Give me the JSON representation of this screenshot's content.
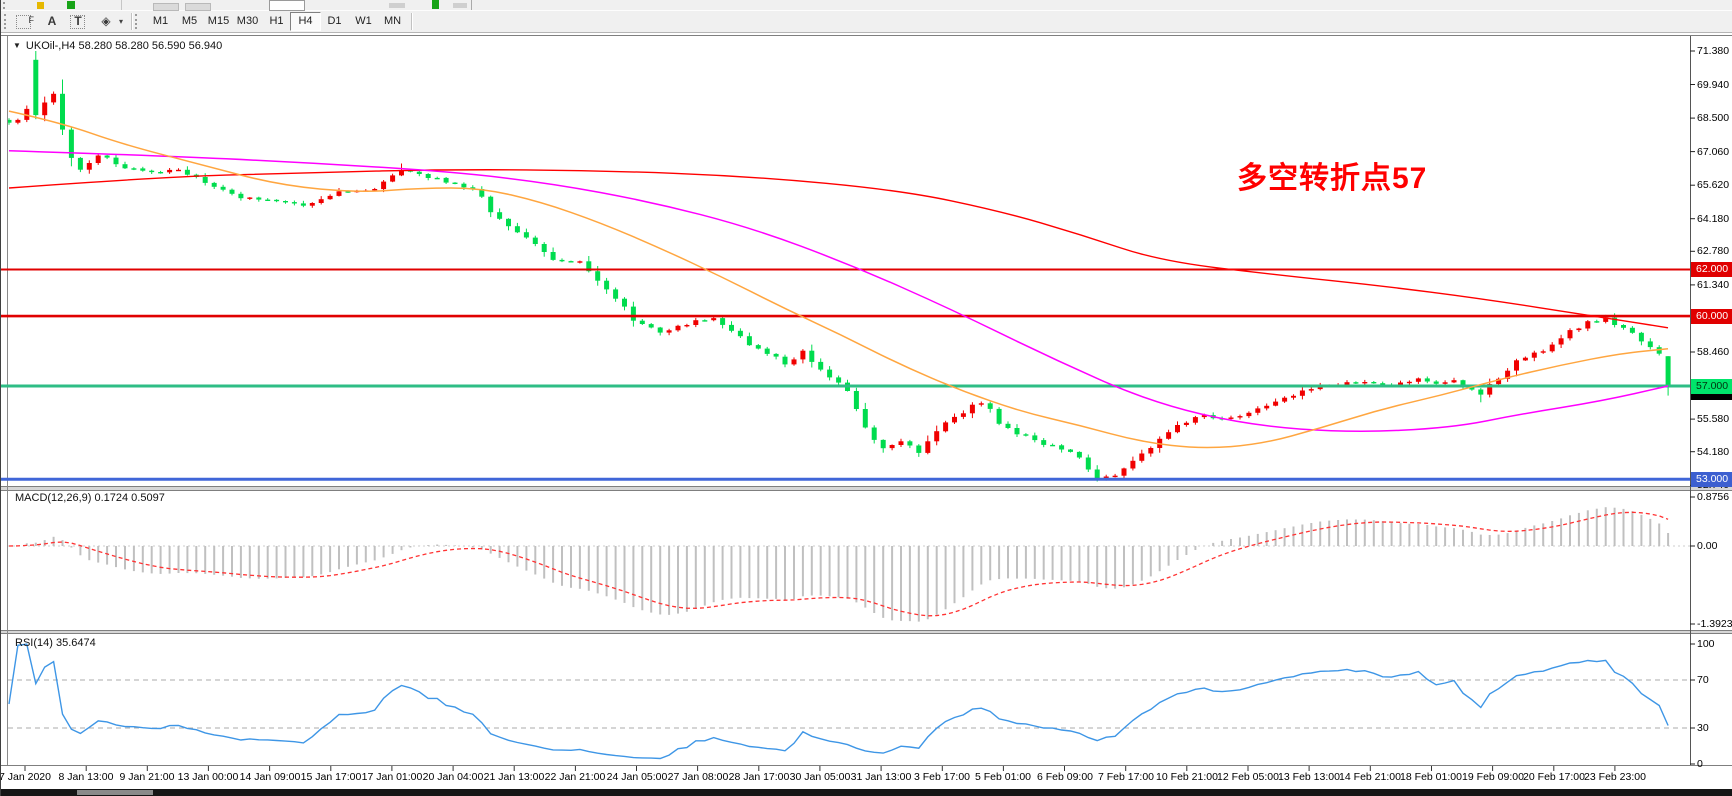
{
  "toolbar": {
    "drawing_icons": [
      {
        "name": "fibonacci-tool-icon",
        "glyph": "F"
      },
      {
        "name": "text-annotation-icon",
        "glyph": "A"
      },
      {
        "name": "text-box-tool-icon",
        "glyph": "T"
      },
      {
        "name": "shapes-tool-icon",
        "glyph": "◈"
      }
    ],
    "shapes_dropdown_caret": "▾",
    "timeframes": [
      "M1",
      "M5",
      "M15",
      "M30",
      "H1",
      "H4",
      "D1",
      "W1",
      "MN"
    ],
    "active_timeframe": "H4"
  },
  "chart": {
    "symbol_menu_icon": "▼",
    "header": "UKOil-,H4  58.280 58.280 56.590 56.940",
    "annotation": {
      "text": "多空转折点57",
      "color": "#FF0000"
    }
  },
  "price_axis": {
    "labels": [
      [
        "71.380",
        71.38
      ],
      [
        "69.940",
        69.94
      ],
      [
        "68.500",
        68.5
      ],
      [
        "67.060",
        67.06
      ],
      [
        "65.620",
        65.62
      ],
      [
        "64.180",
        64.18
      ],
      [
        "62.780",
        62.78
      ],
      [
        "61.340",
        61.34
      ],
      [
        "58.460",
        58.46
      ],
      [
        "55.580",
        55.58
      ],
      [
        "54.180",
        54.18
      ],
      [
        "52.740",
        52.74
      ]
    ]
  },
  "hlines": [
    {
      "value": 62.0,
      "label": "62.000",
      "line_color": "#E00000",
      "badge_bg": "#E00000",
      "badge_fg": "#FFFFFF",
      "width": 2
    },
    {
      "value": 60.0,
      "label": "60.000",
      "line_color": "#E00000",
      "badge_bg": "#E00000",
      "badge_fg": "#FFFFFF",
      "width": 2.6
    },
    {
      "value": 57.0,
      "label": "57.000",
      "line_color": "#2EBD85",
      "badge_bg": "#00E56B",
      "badge_fg": "#00330F",
      "width": 3
    },
    {
      "value": 53.0,
      "label": "53.000",
      "line_color": "#4066D8",
      "badge_bg": "#3C5FD0",
      "badge_fg": "#FFFFFF",
      "width": 3
    }
  ],
  "last_price": {
    "value": 56.94,
    "label": "56.940"
  },
  "indicators": {
    "macd": {
      "label": "MACD(12,26,9) 0.1724 0.5097",
      "params": [
        12,
        26,
        9
      ],
      "current_values": [
        "0.1724",
        "0.5097"
      ],
      "axis": [
        [
          "0.8756",
          0.8756
        ],
        [
          "0.00",
          0
        ],
        [
          "-1.3923",
          -1.3923
        ]
      ],
      "histogram_color": "#C0C0C0",
      "signal_color": "#FF3333"
    },
    "rsi": {
      "label": "RSI(14) 35.6474",
      "period": 14,
      "current_value": "35.6474",
      "axis": [
        [
          "100",
          100
        ],
        [
          "70",
          70
        ],
        [
          "30",
          30
        ],
        [
          "0",
          0
        ]
      ],
      "levels": [
        70,
        30
      ],
      "line_color": "#3E96E6",
      "level_color": "#ABABAB"
    }
  },
  "time_axis": {
    "labels": [
      "7 Jan 2020",
      "8 Jan 13:00",
      "9 Jan 21:00",
      "13 Jan 00:00",
      "14 Jan 09:00",
      "15 Jan 17:00",
      "17 Jan 01:00",
      "20 Jan 04:00",
      "21 Jan 13:00",
      "22 Jan 21:00",
      "24 Jan 05:00",
      "27 Jan 08:00",
      "28 Jan 17:00",
      "30 Jan 05:00",
      "31 Jan 13:00",
      "3 Feb 17:00",
      "5 Feb 01:00",
      "6 Feb 09:00",
      "7 Feb 17:00",
      "10 Feb 21:00",
      "12 Feb 05:00",
      "13 Feb 13:00",
      "14 Feb 21:00",
      "18 Feb 01:00",
      "19 Feb 09:00",
      "20 Feb 17:00",
      "23 Feb 23:00"
    ]
  },
  "chart_data": {
    "type": "candlestick",
    "symbol": "UKOil-",
    "timeframe": "H4",
    "bars": 187,
    "ohlc_last": {
      "open": 58.28,
      "high": 58.28,
      "low": 56.59,
      "close": 56.94
    },
    "price_range_visible": [
      52.74,
      71.85
    ],
    "candle_up_color": "#F00000",
    "candle_down_color": "#00DC4E",
    "close_path": [
      [
        0,
        68.3
      ],
      [
        1,
        68.5
      ],
      [
        2,
        68.8
      ],
      [
        3,
        68.6
      ],
      [
        4,
        69.2
      ],
      [
        5,
        69.5
      ],
      [
        6,
        68.1
      ],
      [
        7,
        66.6
      ],
      [
        8,
        66.4
      ],
      [
        10,
        66.9
      ],
      [
        13,
        66.4
      ],
      [
        16,
        66.15
      ],
      [
        19,
        66.3
      ],
      [
        23,
        65.5
      ],
      [
        26,
        65.1
      ],
      [
        29,
        65.0
      ],
      [
        33,
        64.7
      ],
      [
        37,
        65.3
      ],
      [
        41,
        65.5
      ],
      [
        44,
        66.2
      ],
      [
        48,
        65.9
      ],
      [
        52,
        65.4
      ],
      [
        55,
        64.2
      ],
      [
        58,
        63.3
      ],
      [
        61,
        62.4
      ],
      [
        64,
        62.3
      ],
      [
        67,
        61.2
      ],
      [
        70,
        59.9
      ],
      [
        73,
        59.3
      ],
      [
        77,
        59.8
      ],
      [
        79,
        59.9
      ],
      [
        81,
        59.3
      ],
      [
        84,
        58.6
      ],
      [
        87,
        58.0
      ],
      [
        89,
        58.5
      ],
      [
        91,
        57.6
      ],
      [
        94,
        56.8
      ],
      [
        96,
        55.2
      ],
      [
        98,
        54.3
      ],
      [
        100,
        54.7
      ],
      [
        102,
        54.2
      ],
      [
        105,
        55.5
      ],
      [
        107,
        55.9
      ],
      [
        109,
        56.3
      ],
      [
        111,
        55.5
      ],
      [
        113,
        55.0
      ],
      [
        116,
        54.5
      ],
      [
        119,
        54.2
      ],
      [
        122,
        53.1
      ],
      [
        124,
        53.2
      ],
      [
        126,
        53.8
      ],
      [
        128,
        54.3
      ],
      [
        131,
        55.4
      ],
      [
        134,
        55.7
      ],
      [
        137,
        55.6
      ],
      [
        140,
        56.1
      ],
      [
        143,
        56.5
      ],
      [
        146,
        56.9
      ],
      [
        149,
        57.1
      ],
      [
        152,
        57.2
      ],
      [
        155,
        57.0
      ],
      [
        158,
        57.3
      ],
      [
        160,
        57.1
      ],
      [
        162,
        57.3
      ],
      [
        165,
        56.6
      ],
      [
        167,
        57.4
      ],
      [
        169,
        58.0
      ],
      [
        171,
        58.4
      ],
      [
        173,
        58.7
      ],
      [
        175,
        59.3
      ],
      [
        177,
        59.7
      ],
      [
        179,
        59.9
      ],
      [
        181,
        59.5
      ],
      [
        183,
        58.9
      ],
      [
        184,
        58.6
      ],
      [
        185,
        58.4
      ],
      [
        186,
        56.94
      ]
    ],
    "overrides": {
      "3": {
        "open": 71.0,
        "high": 71.38,
        "low": 68.45
      },
      "44": {
        "high": 66.55
      },
      "122": {
        "low": 52.9
      },
      "165": {
        "low": 56.3
      },
      "179": {
        "high": 60.05
      },
      "186": {
        "open": 58.28,
        "high": 58.28,
        "low": 56.59,
        "close": 56.94
      }
    },
    "moving_averages": [
      {
        "name": "ma-slow",
        "color": "#FF0000",
        "width": 1.4,
        "path": [
          [
            8,
            65.5
          ],
          [
            150,
            65.95
          ],
          [
            300,
            66.15
          ],
          [
            450,
            66.3
          ],
          [
            600,
            66.25
          ],
          [
            750,
            66.0
          ],
          [
            900,
            65.4
          ],
          [
            1000,
            64.5
          ],
          [
            1080,
            63.5
          ],
          [
            1160,
            62.35
          ],
          [
            1280,
            61.75
          ],
          [
            1380,
            61.3
          ],
          [
            1480,
            60.75
          ],
          [
            1593,
            60.0
          ],
          [
            1667,
            59.5
          ]
        ]
      },
      {
        "name": "ma-mid",
        "color": "#FF00FF",
        "width": 1.5,
        "path": [
          [
            8,
            67.1
          ],
          [
            150,
            66.9
          ],
          [
            300,
            66.6
          ],
          [
            450,
            66.2
          ],
          [
            550,
            65.7
          ],
          [
            650,
            64.9
          ],
          [
            750,
            63.8
          ],
          [
            850,
            62.2
          ],
          [
            950,
            60.3
          ],
          [
            1050,
            58.2
          ],
          [
            1150,
            56.3
          ],
          [
            1250,
            55.3
          ],
          [
            1350,
            55.0
          ],
          [
            1450,
            55.2
          ],
          [
            1520,
            55.8
          ],
          [
            1600,
            56.35
          ],
          [
            1667,
            57.0
          ]
        ]
      },
      {
        "name": "ma-fast",
        "color": "#FFA640",
        "width": 1.5,
        "path": [
          [
            8,
            68.8
          ],
          [
            60,
            68.3
          ],
          [
            120,
            67.4
          ],
          [
            200,
            66.5
          ],
          [
            280,
            65.6
          ],
          [
            360,
            65.3
          ],
          [
            420,
            65.5
          ],
          [
            480,
            65.5
          ],
          [
            540,
            64.9
          ],
          [
            600,
            64.0
          ],
          [
            660,
            62.9
          ],
          [
            720,
            61.7
          ],
          [
            780,
            60.4
          ],
          [
            840,
            59.2
          ],
          [
            900,
            57.9
          ],
          [
            960,
            56.8
          ],
          [
            1020,
            55.9
          ],
          [
            1080,
            55.3
          ],
          [
            1140,
            54.6
          ],
          [
            1200,
            54.3
          ],
          [
            1260,
            54.5
          ],
          [
            1320,
            55.2
          ],
          [
            1380,
            56.0
          ],
          [
            1440,
            56.6
          ],
          [
            1500,
            57.3
          ],
          [
            1560,
            57.9
          ],
          [
            1620,
            58.4
          ],
          [
            1667,
            58.6
          ]
        ]
      }
    ]
  }
}
